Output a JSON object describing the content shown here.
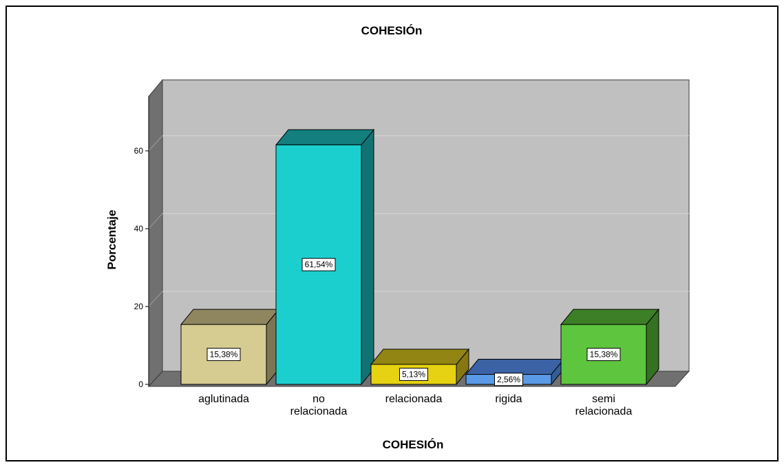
{
  "chart_data": {
    "type": "bar",
    "title": "COHESIÓn",
    "xlabel": "COHESIÓn",
    "ylabel": "Porcentaje",
    "ylim": [
      0,
      70
    ],
    "yticks": [
      0,
      20,
      40,
      60
    ],
    "grid": true,
    "categories": [
      "aglutinada",
      "no relacionada",
      "relacionada",
      "rigida",
      "semi relacionada"
    ],
    "category_lines": [
      [
        "aglutinada"
      ],
      [
        "no",
        "relacionada"
      ],
      [
        "relacionada"
      ],
      [
        "rigida"
      ],
      [
        "semi",
        "relacionada"
      ]
    ],
    "values": [
      15.38,
      61.54,
      5.13,
      2.56,
      15.38
    ],
    "data_labels": [
      "15,38%",
      "61,54%",
      "5,13%",
      "2,56%",
      "15,38%"
    ],
    "colors": {
      "front": [
        "#d6cc92",
        "#1ccfcf",
        "#e6d212",
        "#5a9ae6",
        "#5ec53e"
      ],
      "top": [
        "#8f8660",
        "#147f7f",
        "#928513",
        "#3b62a5",
        "#3d7f27"
      ],
      "side": [
        "#7d7552",
        "#127272",
        "#857812",
        "#355d95",
        "#357123"
      ],
      "plot_background": "#c0c0c0",
      "plot_walls": "#707070"
    }
  }
}
